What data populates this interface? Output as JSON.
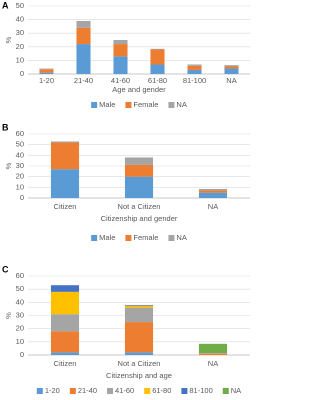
{
  "chart_data": [
    {
      "type": "bar",
      "stacked": true,
      "panel_label": "A",
      "x_label": "Age and gender",
      "y_label": "%",
      "categories": [
        "1-20",
        "21-40",
        "41-60",
        "61-80",
        "81-100",
        "NA"
      ],
      "series": [
        {
          "name": "Male",
          "color": "#5b9bd5",
          "values": [
            1,
            22,
            13,
            7,
            3,
            4
          ]
        },
        {
          "name": "Female",
          "color": "#ed7d31",
          "values": [
            2.5,
            12,
            9,
            11,
            3,
            1.5
          ]
        },
        {
          "name": "NA",
          "color": "#a5a5a5",
          "values": [
            0.5,
            5,
            3,
            0.5,
            1,
            1
          ]
        }
      ],
      "ylim": [
        0,
        50
      ],
      "yticks": [
        0,
        10,
        20,
        30,
        40,
        50
      ],
      "grid": true,
      "legend": "bottom"
    },
    {
      "type": "bar",
      "stacked": true,
      "panel_label": "B",
      "x_label": "Citizenship and gender",
      "y_label": "%",
      "categories": [
        "Citizen",
        "Not a Citizen",
        "NA"
      ],
      "series": [
        {
          "name": "Male",
          "color": "#5b9bd5",
          "values": [
            27,
            20,
            5
          ]
        },
        {
          "name": "Female",
          "color": "#ed7d31",
          "values": [
            25,
            11,
            2
          ]
        },
        {
          "name": "NA",
          "color": "#a5a5a5",
          "values": [
            1,
            7,
            1.5
          ]
        }
      ],
      "ylim": [
        0,
        60
      ],
      "yticks": [
        0,
        10,
        20,
        30,
        40,
        50,
        60
      ],
      "grid": true,
      "legend": "bottom"
    },
    {
      "type": "bar",
      "stacked": true,
      "panel_label": "C",
      "x_label": "Citizenship and age",
      "y_label": "%",
      "categories": [
        "Citizen",
        "Not a Citizen",
        "NA"
      ],
      "series": [
        {
          "name": "1-20",
          "color": "#5b9bd5",
          "values": [
            2,
            2,
            0
          ]
        },
        {
          "name": "21-40",
          "color": "#ed7d31",
          "values": [
            16,
            23,
            1
          ]
        },
        {
          "name": "41-60",
          "color": "#a5a5a5",
          "values": [
            13,
            11,
            0.5
          ]
        },
        {
          "name": "61-80",
          "color": "#ffc000",
          "values": [
            17,
            1.5,
            0
          ]
        },
        {
          "name": "81-100",
          "color": "#4472c4",
          "values": [
            5,
            0.5,
            0
          ]
        },
        {
          "name": "NA",
          "color": "#70ad47",
          "values": [
            0,
            0,
            7
          ]
        }
      ],
      "ylim": [
        0,
        60
      ],
      "yticks": [
        0,
        10,
        20,
        30,
        40,
        50,
        60
      ],
      "grid": true,
      "legend": "bottom"
    }
  ]
}
